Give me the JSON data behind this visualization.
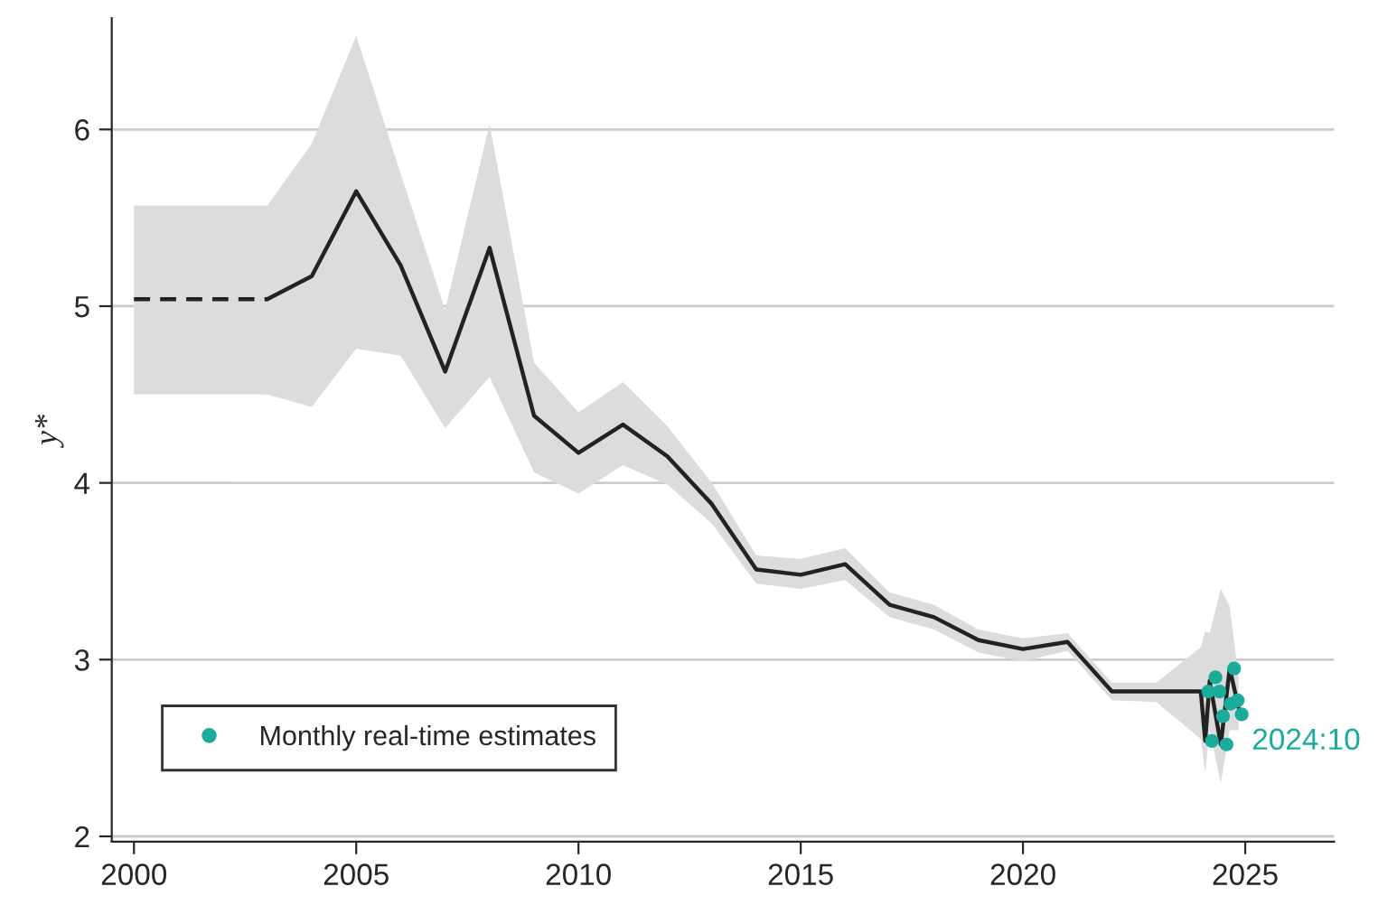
{
  "chart_data": {
    "type": "line",
    "ylabel": "y*",
    "xlim": [
      1999.5,
      2027
    ],
    "ylim": [
      1.97,
      6.63
    ],
    "xticks": [
      2000,
      2005,
      2010,
      2015,
      2020,
      2025
    ],
    "yticks": [
      2,
      3,
      4,
      5,
      6
    ],
    "grid": "y",
    "legend": "bottom left",
    "series": [
      {
        "line_style": "dashed",
        "color": "#222222",
        "x": [
          2000,
          2003
        ],
        "values": [
          5.04,
          5.04
        ],
        "lower": [
          4.5,
          4.5
        ],
        "upper": [
          5.57,
          5.57
        ]
      },
      {
        "line_style": "solid",
        "color": "#222222",
        "x": [
          2003,
          2004,
          2005,
          2006,
          2007,
          2008,
          2009,
          2010,
          2011,
          2012,
          2013,
          2014,
          2015,
          2016,
          2017,
          2018,
          2019,
          2020,
          2021,
          2022,
          2023,
          2024.0,
          2024.1,
          2024.2,
          2024.45,
          2024.65,
          2024.85
        ],
        "values": [
          5.04,
          5.17,
          5.65,
          5.23,
          4.63,
          5.33,
          4.38,
          4.17,
          4.33,
          4.15,
          3.88,
          3.51,
          3.48,
          3.54,
          3.31,
          3.24,
          3.11,
          3.06,
          3.1,
          2.82,
          2.82,
          2.82,
          2.54,
          2.88,
          2.52,
          2.95,
          2.73
        ],
        "lower": [
          4.5,
          4.43,
          4.76,
          4.72,
          4.31,
          4.6,
          4.06,
          3.94,
          4.1,
          3.99,
          3.77,
          3.43,
          3.4,
          3.45,
          3.24,
          3.17,
          3.04,
          2.99,
          3.05,
          2.77,
          2.76,
          2.55,
          2.36,
          2.6,
          2.3,
          2.6,
          2.6
        ],
        "upper": [
          5.57,
          5.92,
          6.53,
          5.75,
          4.98,
          6.03,
          4.68,
          4.4,
          4.57,
          4.32,
          4.0,
          3.59,
          3.57,
          3.63,
          3.38,
          3.31,
          3.17,
          3.12,
          3.15,
          2.87,
          2.87,
          3.07,
          3.16,
          3.15,
          3.4,
          3.3,
          2.9
        ]
      },
      {
        "type": "scatter",
        "name": "Monthly real-time estimates",
        "marker": "circle",
        "color": "#1aab9b",
        "x": [
          2024.17,
          2024.25,
          2024.33,
          2024.42,
          2024.5,
          2024.58,
          2024.67,
          2024.75,
          2024.83,
          2024.92
        ],
        "values": [
          2.82,
          2.54,
          2.9,
          2.82,
          2.68,
          2.52,
          2.75,
          2.95,
          2.77,
          2.69
        ]
      }
    ],
    "annotations": [
      {
        "text": "2024:10",
        "x": 2024.92,
        "y": 2.69
      }
    ]
  }
}
